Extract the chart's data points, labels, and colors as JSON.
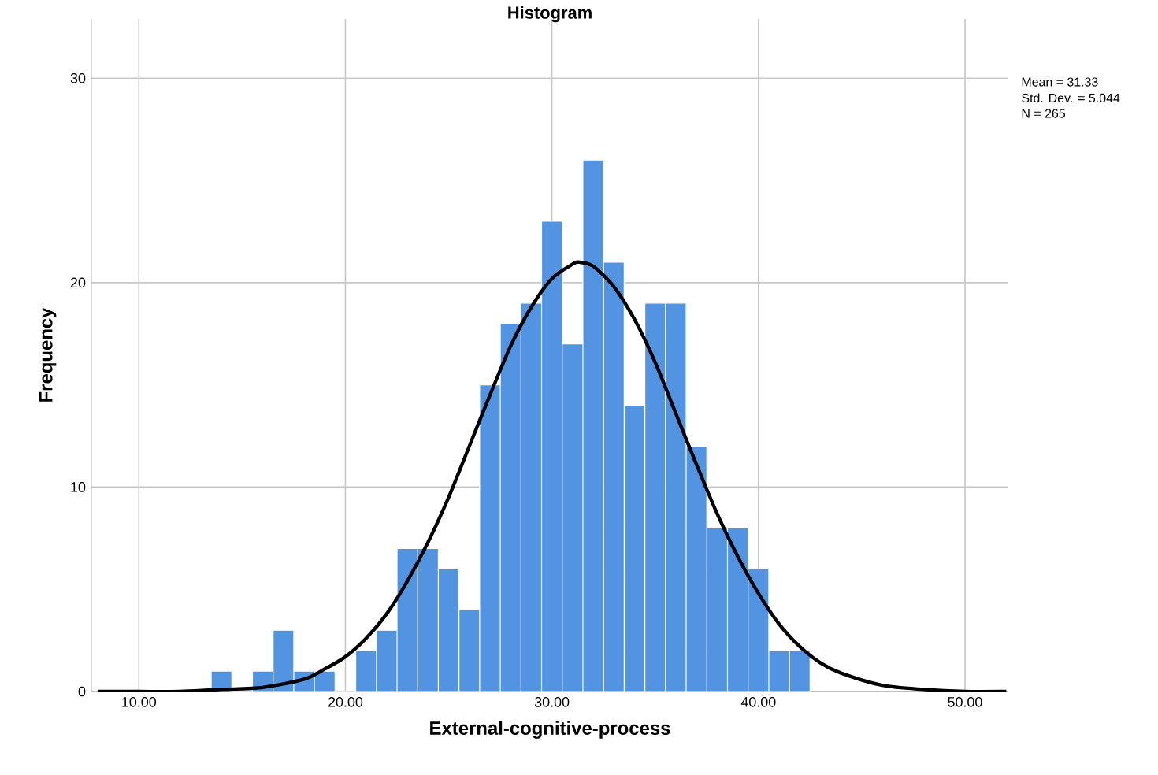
{
  "chart_data": {
    "type": "histogram",
    "title": "Histogram",
    "xlabel": "External-cognitive-process",
    "ylabel": "Frequency",
    "bins": [
      13.5,
      14.5,
      15.5,
      16.5,
      17.5,
      18.5,
      19.5,
      20.5,
      21.5,
      22.5,
      23.5,
      24.5,
      25.5,
      26.5,
      27.5,
      28.5,
      29.5,
      30.5,
      31.5,
      32.5,
      33.5,
      34.5,
      35.5,
      36.5,
      37.5,
      38.5,
      39.5,
      40.5,
      41.5,
      42.5
    ],
    "values": [
      1,
      0,
      1,
      3,
      1,
      1,
      0,
      2,
      3,
      7,
      7,
      6,
      4,
      15,
      18,
      19,
      23,
      17,
      26,
      21,
      14,
      19,
      19,
      12,
      8,
      8,
      6,
      2,
      2
    ],
    "color": "#5294e2",
    "series": [
      {
        "type": "line",
        "color": "#000000",
        "x": [
          8,
          10,
          12,
          14,
          16,
          18,
          19,
          20,
          21,
          22,
          23,
          24,
          25,
          26,
          27,
          28,
          29,
          30,
          31,
          31.33,
          32,
          33,
          34,
          35,
          36,
          37,
          38,
          39,
          40,
          41,
          42,
          43,
          44,
          46,
          48,
          50,
          52
        ],
        "values": [
          0,
          0,
          0,
          0.1,
          0.2,
          0.6,
          1.1,
          1.7,
          2.6,
          3.8,
          5.4,
          7.3,
          9.5,
          12.0,
          14.5,
          16.9,
          18.8,
          20.2,
          20.9,
          21.0,
          20.8,
          19.8,
          18.2,
          16.1,
          13.6,
          11.1,
          8.7,
          6.6,
          4.8,
          3.3,
          2.2,
          1.4,
          0.9,
          0.3,
          0.1,
          0,
          0
        ]
      }
    ],
    "xlim": [
      7.7,
      52.1
    ],
    "ylim": [
      0,
      32.9
    ],
    "xticks": [
      {
        "value": 10,
        "label": "10.00"
      },
      {
        "value": 20,
        "label": "20.00"
      },
      {
        "value": 30,
        "label": "30.00"
      },
      {
        "value": 40,
        "label": "40.00"
      },
      {
        "value": 50,
        "label": "50.00"
      }
    ],
    "yticks": [
      0,
      10,
      20,
      30
    ],
    "grid": true,
    "annotations": [
      "Mean = 31.33",
      "Std. Dev. = 5.044",
      "N = 265"
    ]
  }
}
